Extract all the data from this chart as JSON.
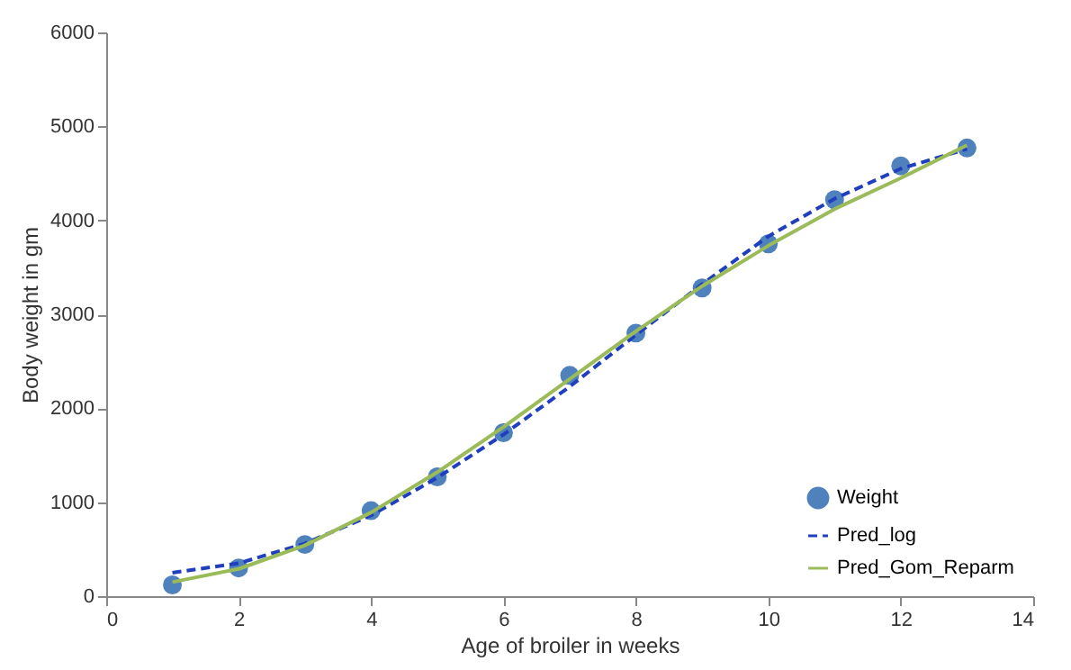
{
  "chart_data": {
    "type": "line",
    "xlabel": "Age of broiler in weeks",
    "ylabel": "Body weight in gm",
    "x": [
      1,
      2,
      3,
      4,
      5,
      6,
      7,
      8,
      9,
      10,
      11,
      12,
      13
    ],
    "xlim": [
      0,
      14
    ],
    "xticks": [
      0,
      2,
      4,
      6,
      8,
      10,
      12,
      14
    ],
    "ylim": [
      0,
      6000
    ],
    "yticks": [
      0,
      1000,
      2000,
      3000,
      4000,
      5000,
      6000
    ],
    "grid": false,
    "legend": "bottom right",
    "series": [
      {
        "name": "Weight",
        "type": "scatter",
        "marker": "circle",
        "color": "#4f81bd",
        "values": [
          120,
          300,
          550,
          910,
          1270,
          1740,
          2350,
          2800,
          3280,
          3750,
          4220,
          4580,
          4770
        ]
      },
      {
        "name": "Pred_log",
        "type": "line",
        "line_style": "dashed",
        "color": "#1f3fbf",
        "values": [
          250,
          350,
          560,
          860,
          1260,
          1720,
          2230,
          2780,
          3320,
          3830,
          4230,
          4550,
          4760
        ]
      },
      {
        "name": "Pred_Gom_Reparm",
        "type": "line",
        "line_style": "solid",
        "color": "#9bbb59",
        "values": [
          150,
          290,
          540,
          890,
          1320,
          1800,
          2310,
          2820,
          3300,
          3730,
          4120,
          4450,
          4800
        ]
      }
    ]
  }
}
